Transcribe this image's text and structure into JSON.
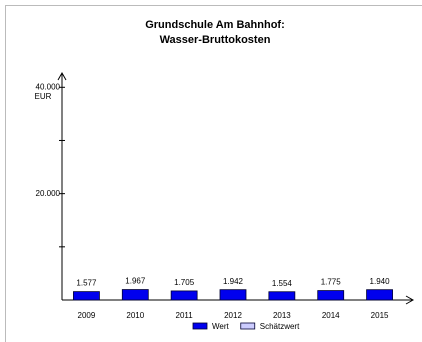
{
  "chart_data": {
    "type": "bar",
    "title": "Grundschule Am Bahnhof:",
    "subtitle": "Wasser-Bruttokosten",
    "y_label": "EUR",
    "categories": [
      "2009",
      "2010",
      "2011",
      "2012",
      "2013",
      "2014",
      "2015"
    ],
    "series": [
      {
        "name": "Wert",
        "color": "#0000ee",
        "values": [
          1577,
          1967,
          1705,
          1942,
          1554,
          1775,
          1940
        ],
        "value_labels": [
          "1.577",
          "1.967",
          "1.705",
          "1.942",
          "1.554",
          "1.775",
          "1.940"
        ]
      },
      {
        "name": "Schätzwert",
        "color": "#ccccff",
        "values": [
          null,
          null,
          null,
          null,
          null,
          null,
          null
        ]
      }
    ],
    "ylim": [
      0,
      42500
    ],
    "yticks": [
      {
        "value": 20000,
        "label": "20.000"
      },
      {
        "value": 40000,
        "label": "40.000"
      }
    ],
    "yminor_ticks": [
      10000,
      30000
    ],
    "grid": false
  }
}
